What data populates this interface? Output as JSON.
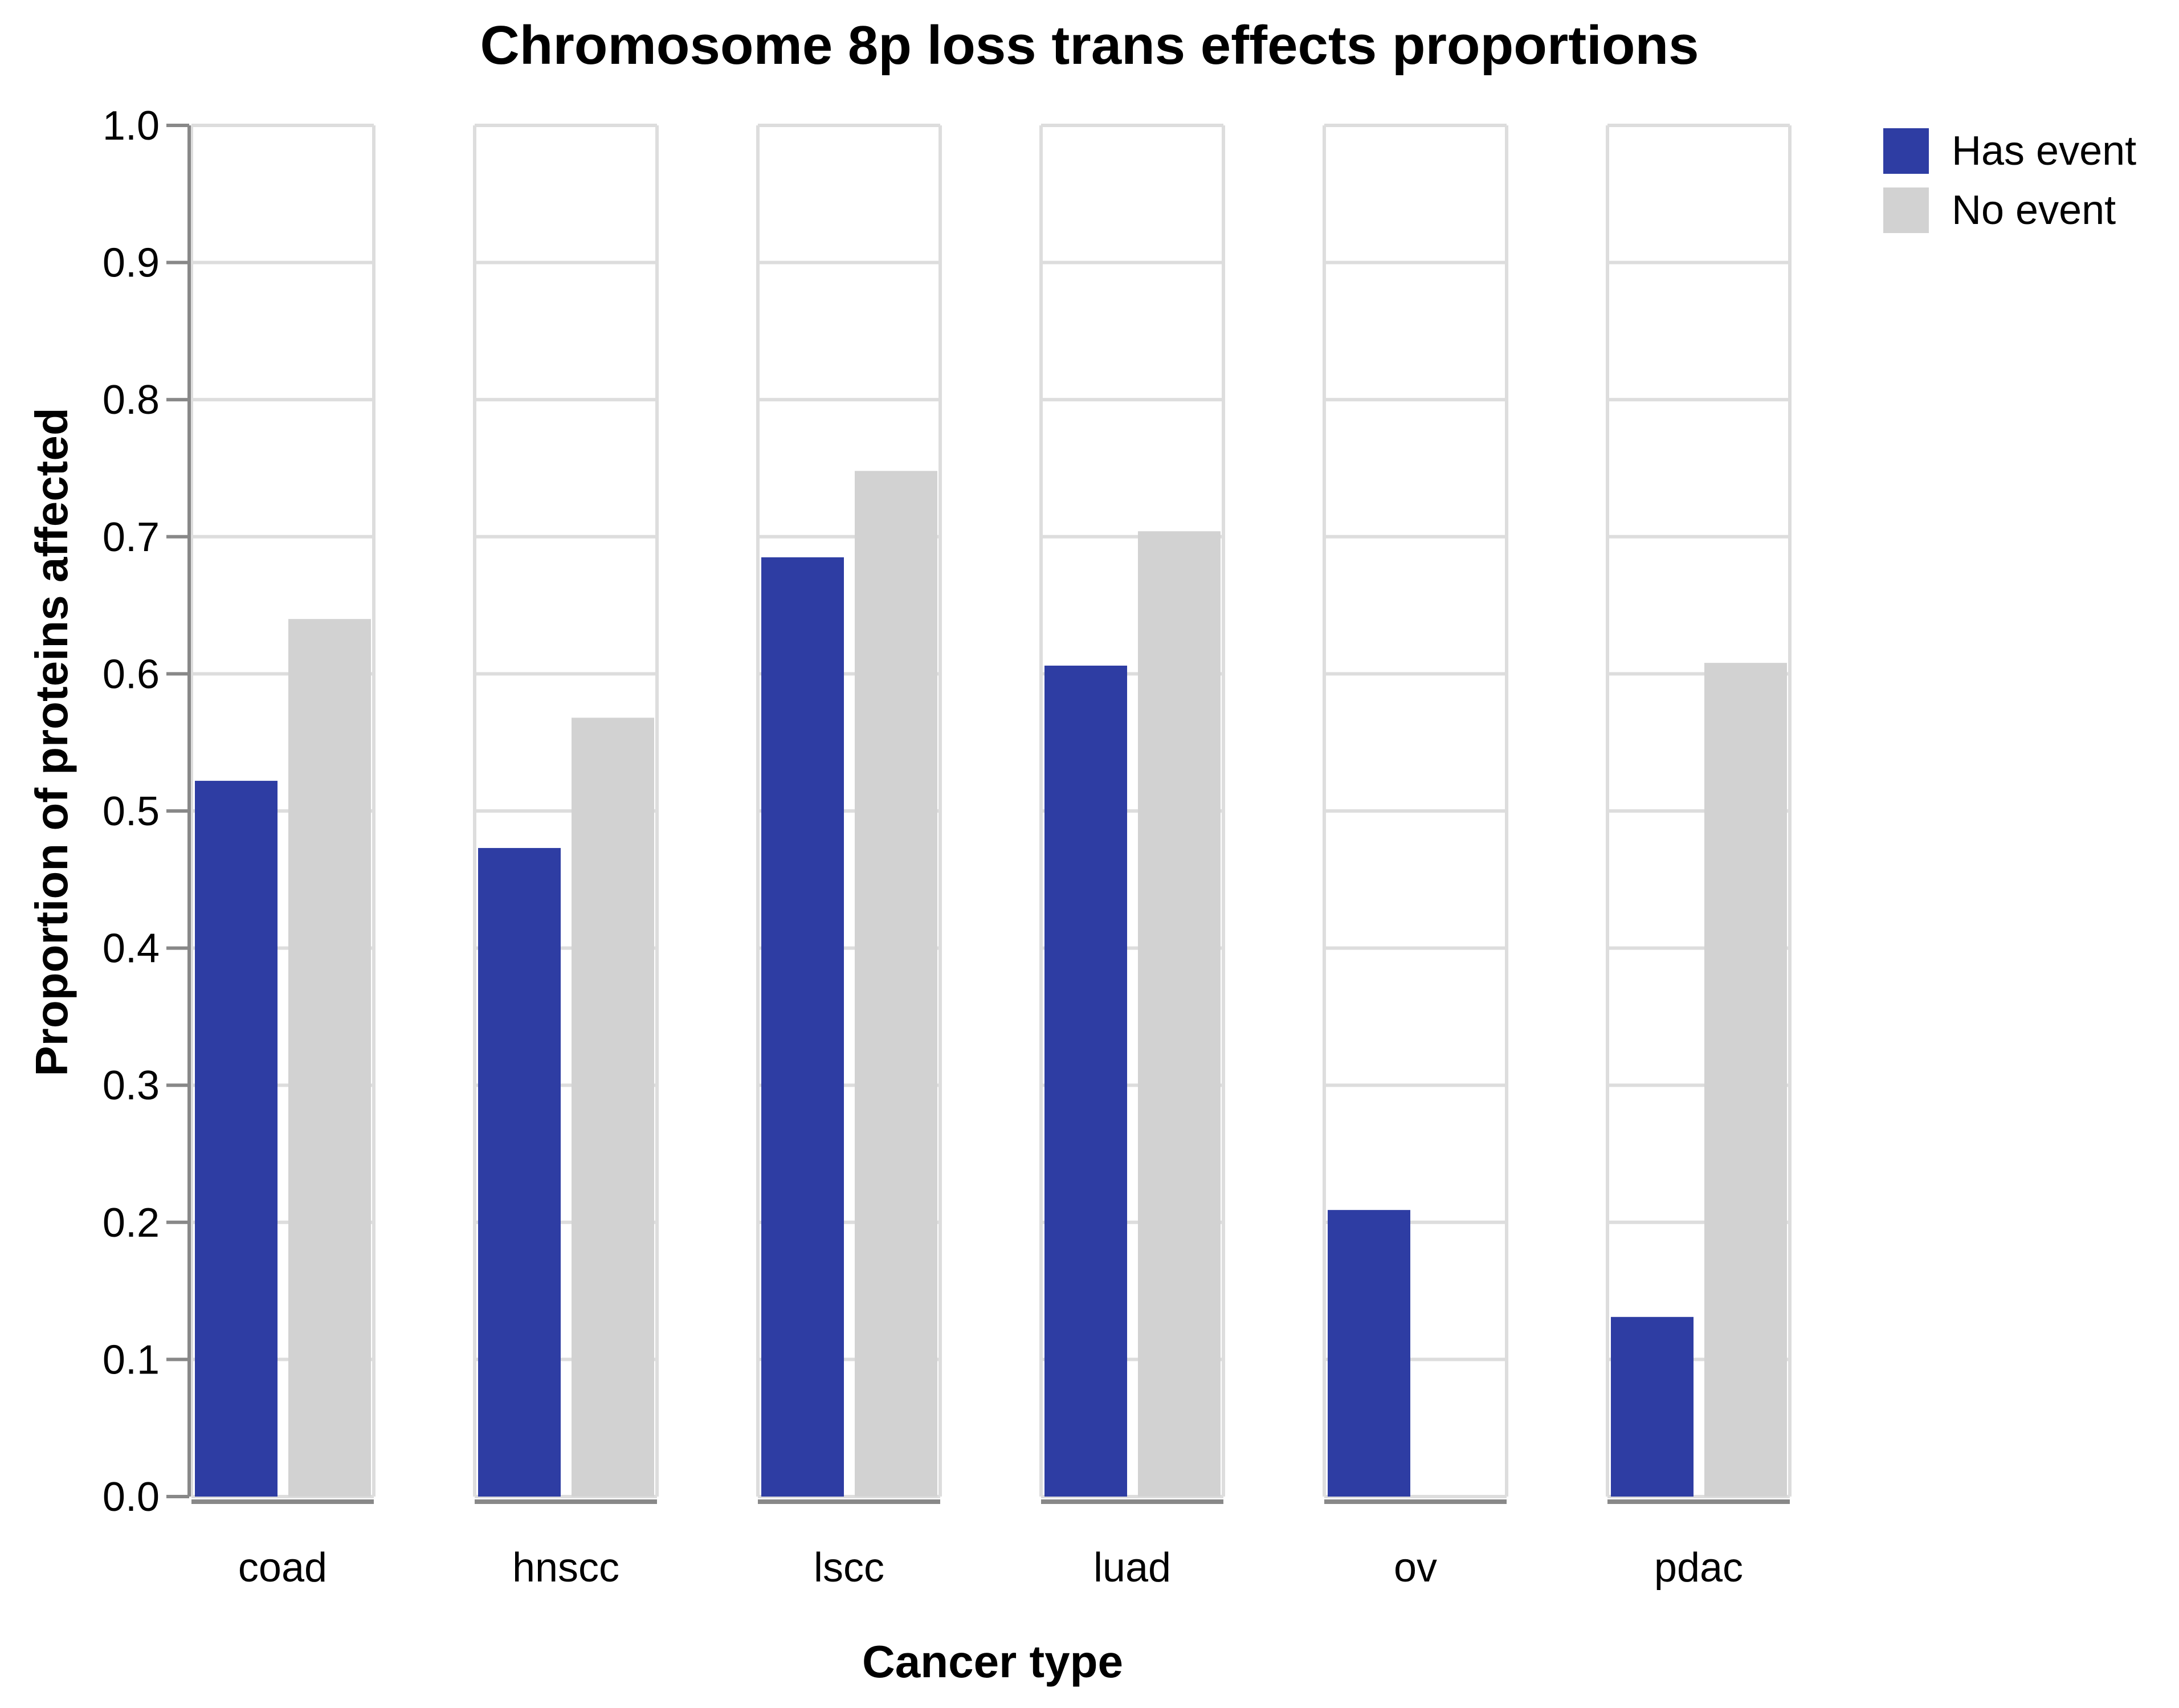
{
  "chart_data": {
    "type": "bar",
    "title": "Chromosome 8p loss trans effects proportions",
    "xlabel": "Cancer type",
    "ylabel": "Proportion of proteins affected",
    "categories": [
      "coad",
      "hnscc",
      "lscc",
      "luad",
      "ov",
      "pdac"
    ],
    "series": [
      {
        "name": "Has event",
        "color": "#2e3da3",
        "values": [
          0.522,
          0.473,
          0.685,
          0.606,
          0.209,
          0.131
        ]
      },
      {
        "name": "No event",
        "color": "#d2d2d2",
        "values": [
          0.64,
          0.568,
          0.748,
          0.704,
          0.0,
          0.608
        ]
      }
    ],
    "ylim": [
      0,
      1.0
    ],
    "yticks": [
      "0.0",
      "0.1",
      "0.2",
      "0.3",
      "0.4",
      "0.5",
      "0.6",
      "0.7",
      "0.8",
      "0.9",
      "1.0"
    ],
    "grid": true,
    "facet_border_color": "#dddddd",
    "axis_color": "#888888",
    "legend_position": "top-right"
  }
}
